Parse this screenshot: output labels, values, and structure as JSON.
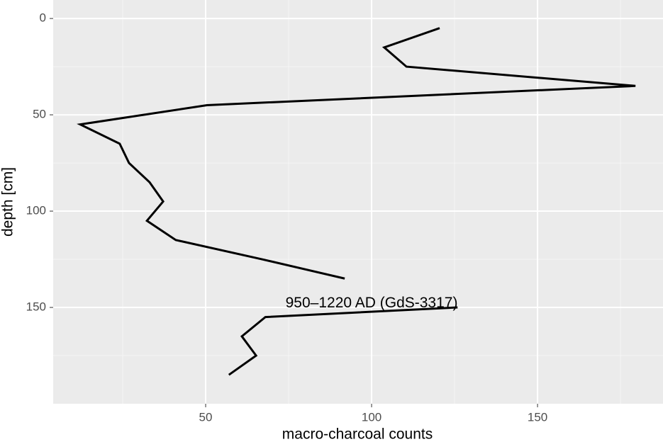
{
  "chart_data": {
    "type": "line",
    "x_label": "macro-charcoal counts",
    "y_label": "depth [cm]",
    "x": [
      120.5,
      103.8,
      110.5,
      179.5,
      50.4,
      12.2,
      24.1,
      26.9,
      33.1,
      37.2,
      32.3,
      41,
      67,
      91.9,
      null,
      125.9,
      68,
      60.9,
      65.2,
      57
    ],
    "y": [
      5,
      15,
      25,
      35,
      45,
      55,
      65,
      75,
      85,
      95,
      105,
      115,
      125,
      135,
      null,
      150,
      155,
      165,
      175,
      185
    ],
    "color": "#000000",
    "xlim": [
      4.06,
      187.8
    ],
    "xticks": [
      50,
      100,
      150
    ],
    "xminor": [
      25,
      75,
      125,
      175
    ],
    "ylim": [
      -9.6,
      200
    ],
    "yticks": [
      0,
      50,
      100,
      150
    ],
    "yminor": [
      25,
      75,
      125,
      175
    ],
    "y_reversed": true,
    "grid": true,
    "annotations": [
      {
        "text": "950–1220 AD (GdS-3317)",
        "x": 100,
        "y": 148
      }
    ]
  }
}
